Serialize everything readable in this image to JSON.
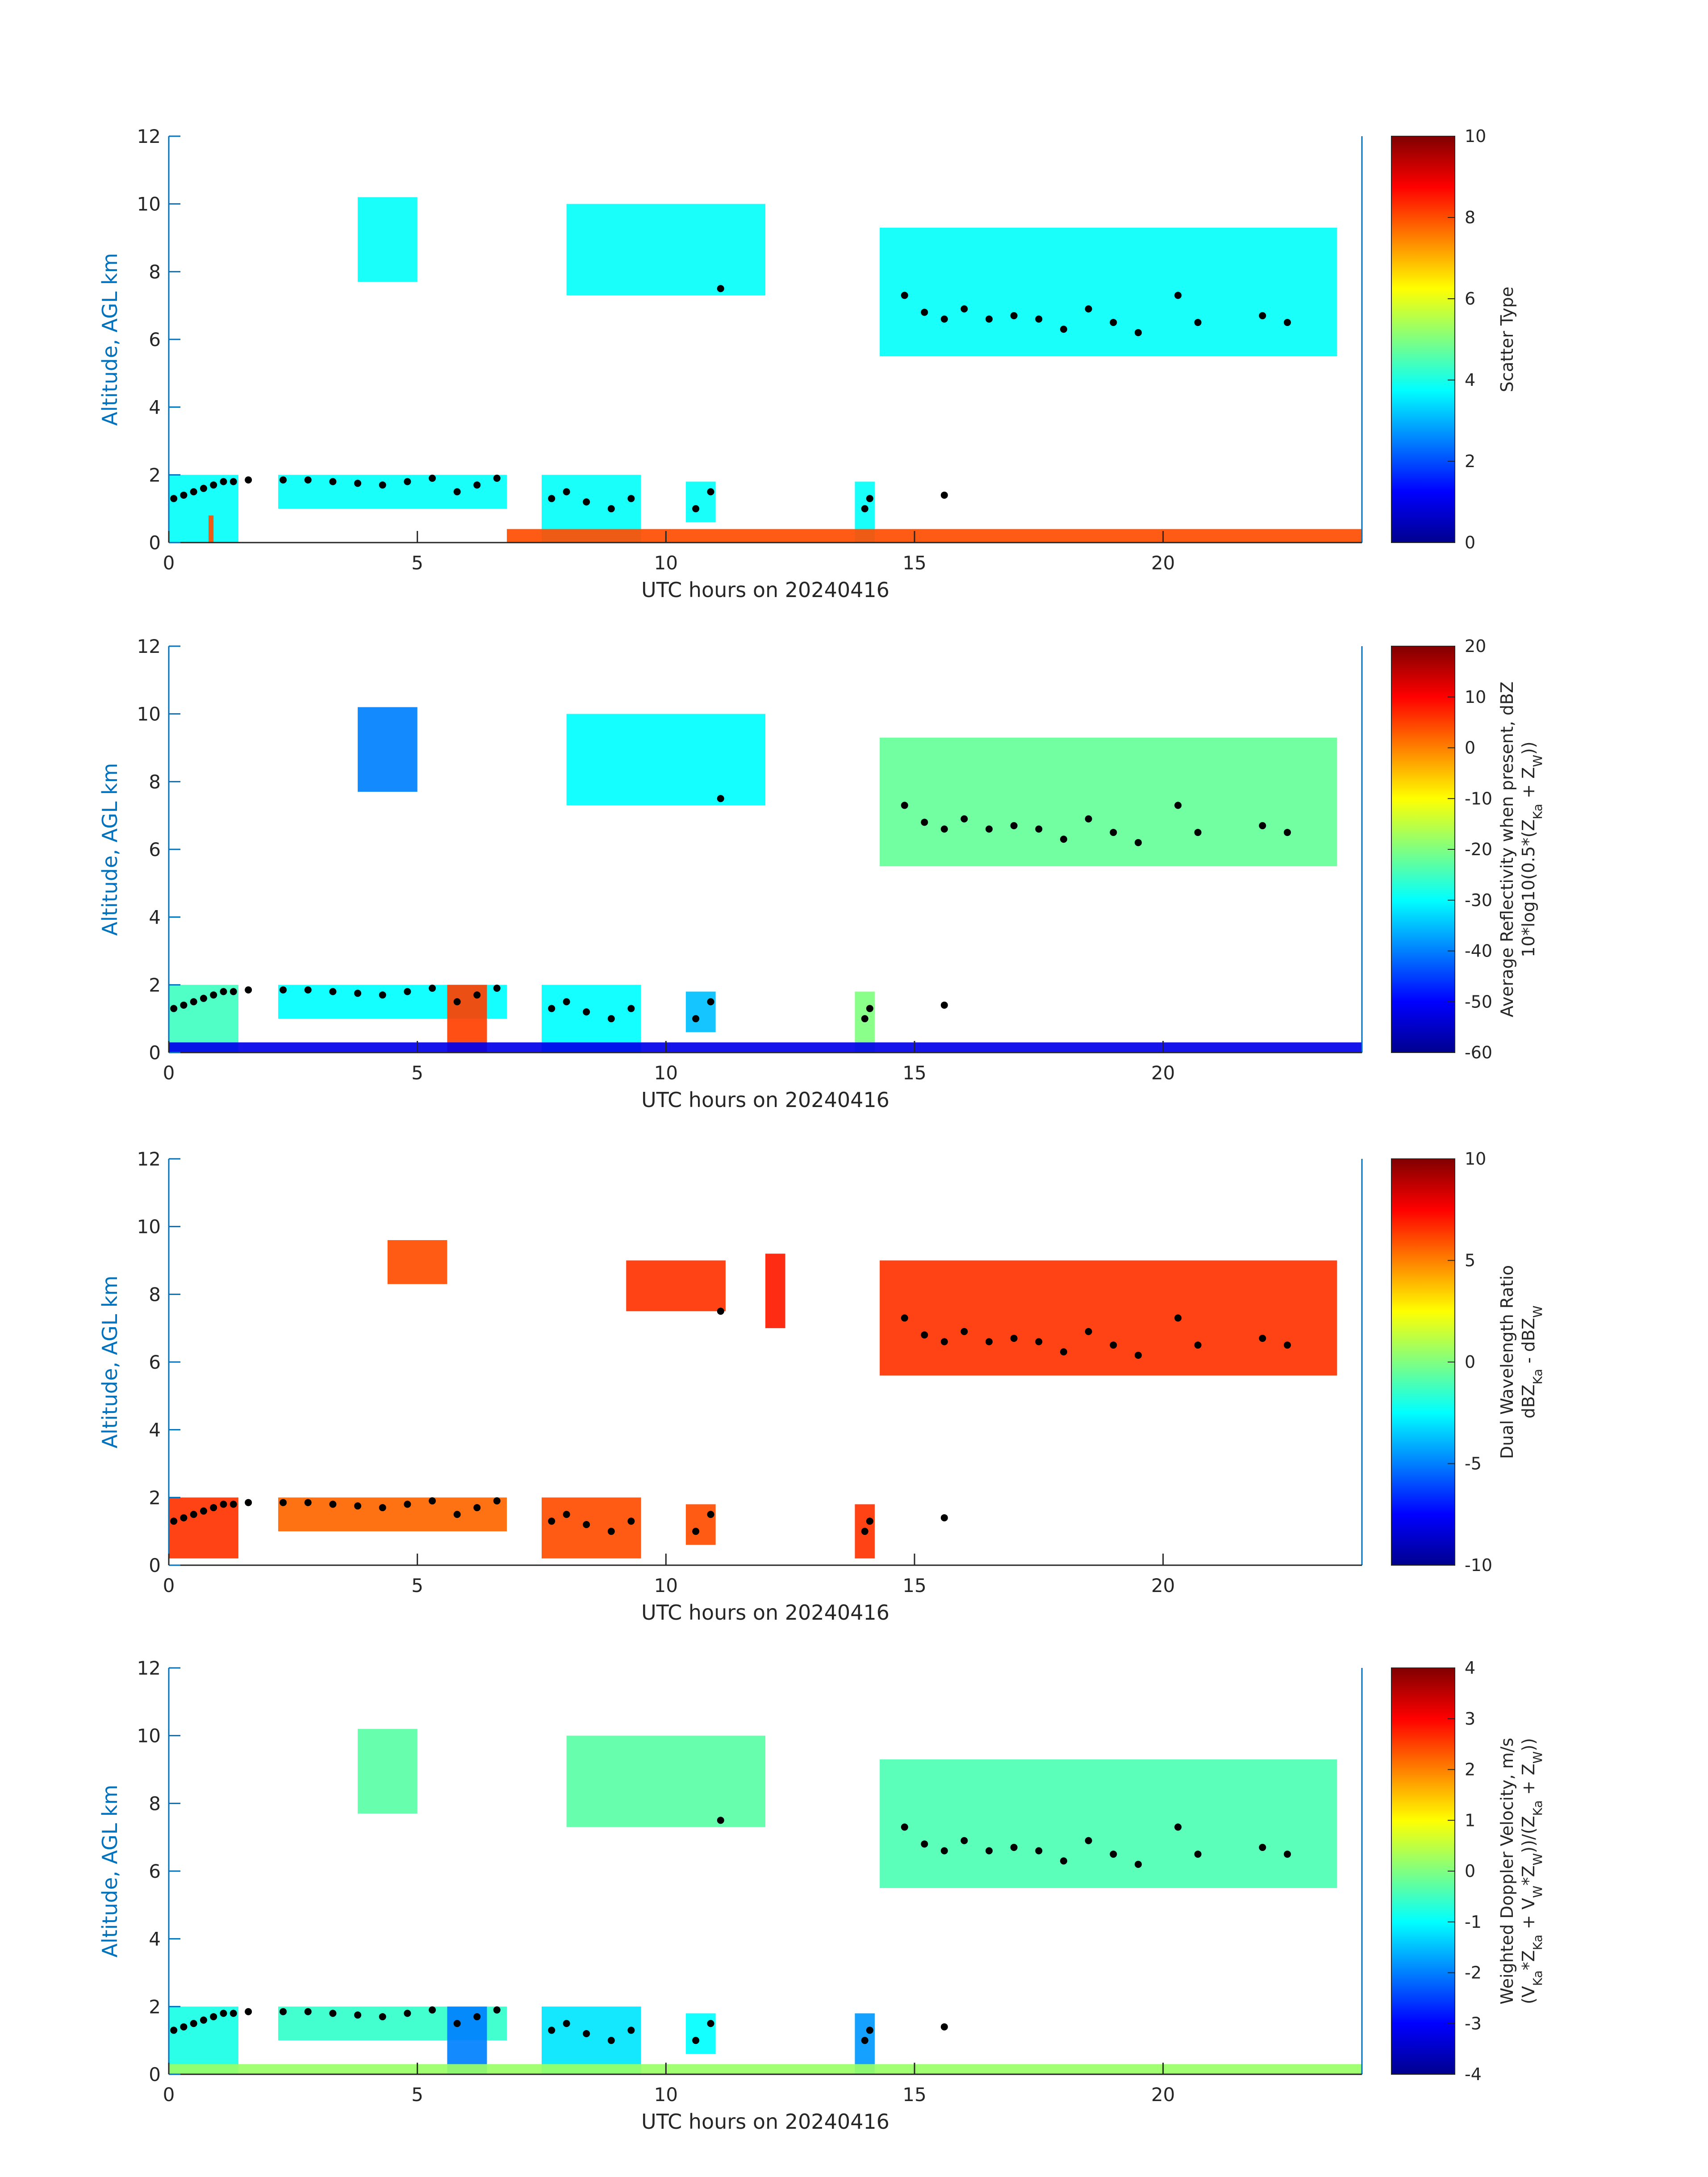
{
  "palette": {
    "axis": "#0072bd",
    "black": "#000000",
    "jet": [
      "#00008f",
      "#0000ff",
      "#0080ff",
      "#00ffff",
      "#80ff80",
      "#ffff00",
      "#ff8000",
      "#ff0000",
      "#800000"
    ]
  },
  "chart_data": [
    {
      "type": "heatmap",
      "title": "",
      "xlabel": "UTC hours on 20240416",
      "ylabel": "Altitude, AGL km",
      "xlim": [
        0,
        24
      ],
      "ylim": [
        0,
        12
      ],
      "x_ticks": [
        0,
        5,
        10,
        15,
        20
      ],
      "y_ticks": [
        0,
        2,
        4,
        6,
        8,
        10,
        12
      ],
      "colorbar": {
        "label": "Scatter Type",
        "label2": "",
        "clim": [
          0,
          10
        ],
        "ticks": [
          0,
          2,
          4,
          6,
          8,
          10
        ]
      },
      "regions": [
        {
          "x": [
            0.0,
            1.4
          ],
          "y": [
            0.0,
            2.0
          ],
          "value": 3.8
        },
        {
          "x": [
            2.2,
            6.8
          ],
          "y": [
            1.0,
            2.0
          ],
          "value": 3.8
        },
        {
          "x": [
            7.5,
            9.5
          ],
          "y": [
            0.0,
            2.0
          ],
          "value": 3.8
        },
        {
          "x": [
            10.4,
            11.0
          ],
          "y": [
            0.6,
            1.8
          ],
          "value": 3.8
        },
        {
          "x": [
            13.8,
            14.2
          ],
          "y": [
            0.0,
            1.8
          ],
          "value": 3.8
        },
        {
          "x": [
            8.0,
            12.0
          ],
          "y": [
            7.3,
            10.0
          ],
          "value": 3.8
        },
        {
          "x": [
            3.8,
            5.0
          ],
          "y": [
            7.7,
            10.2
          ],
          "value": 3.8
        },
        {
          "x": [
            14.3,
            23.5
          ],
          "y": [
            5.5,
            9.3
          ],
          "value": 3.8
        },
        {
          "x": [
            0.8,
            0.9
          ],
          "y": [
            0.0,
            0.8
          ],
          "value": 8.0
        },
        {
          "x": [
            6.8,
            24.0
          ],
          "y": [
            0.0,
            0.4
          ],
          "value": 8.0
        }
      ]
    },
    {
      "type": "heatmap",
      "title": "",
      "xlabel": "UTC hours on 20240416",
      "ylabel": "Altitude, AGL km",
      "xlim": [
        0,
        24
      ],
      "ylim": [
        0,
        12
      ],
      "x_ticks": [
        0,
        5,
        10,
        15,
        20
      ],
      "y_ticks": [
        0,
        2,
        4,
        6,
        8,
        10,
        12
      ],
      "colorbar": {
        "label": "Average Reflectivity when present, dBZ",
        "label2": "10*log10(0.5*(Z_Ka + Z_W))",
        "clim": [
          -60,
          20
        ],
        "ticks": [
          -60,
          -50,
          -40,
          -30,
          -20,
          -10,
          0,
          10,
          20
        ]
      },
      "regions": [
        {
          "x": [
            0.0,
            1.4
          ],
          "y": [
            0.0,
            2.0
          ],
          "value": -25
        },
        {
          "x": [
            2.2,
            6.8
          ],
          "y": [
            1.0,
            2.0
          ],
          "value": -30
        },
        {
          "x": [
            5.6,
            6.4
          ],
          "y": [
            0.0,
            2.0
          ],
          "value": 5
        },
        {
          "x": [
            7.5,
            9.5
          ],
          "y": [
            0.0,
            2.0
          ],
          "value": -30
        },
        {
          "x": [
            10.4,
            11.0
          ],
          "y": [
            0.6,
            1.8
          ],
          "value": -35
        },
        {
          "x": [
            13.8,
            14.2
          ],
          "y": [
            0.0,
            1.8
          ],
          "value": -20
        },
        {
          "x": [
            8.0,
            12.0
          ],
          "y": [
            7.3,
            10.0
          ],
          "value": -30
        },
        {
          "x": [
            3.8,
            5.0
          ],
          "y": [
            7.7,
            10.2
          ],
          "value": -40
        },
        {
          "x": [
            14.3,
            23.5
          ],
          "y": [
            5.5,
            9.3
          ],
          "value": -22
        },
        {
          "x": [
            0.0,
            24.0
          ],
          "y": [
            0.0,
            0.3
          ],
          "value": -52
        }
      ]
    },
    {
      "type": "heatmap",
      "title": "",
      "xlabel": "UTC hours on 20240416",
      "ylabel": "Altitude, AGL km",
      "xlim": [
        0,
        24
      ],
      "ylim": [
        0,
        12
      ],
      "x_ticks": [
        0,
        5,
        10,
        15,
        20
      ],
      "y_ticks": [
        0,
        2,
        4,
        6,
        8,
        10,
        12
      ],
      "colorbar": {
        "label": "Dual Wavelength Ratio",
        "label2": "dBZ_Ka - dBZ_W",
        "clim": [
          -10,
          10
        ],
        "ticks": [
          -10,
          -5,
          0,
          5,
          10
        ]
      },
      "regions": [
        {
          "x": [
            0.0,
            1.4
          ],
          "y": [
            0.2,
            2.0
          ],
          "value": 6.5
        },
        {
          "x": [
            2.2,
            6.8
          ],
          "y": [
            1.0,
            2.0
          ],
          "value": 5.5
        },
        {
          "x": [
            7.5,
            9.5
          ],
          "y": [
            0.2,
            2.0
          ],
          "value": 6.0
        },
        {
          "x": [
            10.4,
            11.0
          ],
          "y": [
            0.6,
            1.8
          ],
          "value": 6.0
        },
        {
          "x": [
            13.8,
            14.2
          ],
          "y": [
            0.2,
            1.8
          ],
          "value": 6.5
        },
        {
          "x": [
            9.2,
            11.2
          ],
          "y": [
            7.5,
            9.0
          ],
          "value": 6.5
        },
        {
          "x": [
            12.0,
            12.4
          ],
          "y": [
            7.0,
            9.2
          ],
          "value": 7.0
        },
        {
          "x": [
            4.4,
            5.6
          ],
          "y": [
            8.3,
            9.6
          ],
          "value": 6.0
        },
        {
          "x": [
            14.3,
            23.5
          ],
          "y": [
            5.6,
            9.0
          ],
          "value": 6.5
        }
      ]
    },
    {
      "type": "heatmap",
      "title": "",
      "xlabel": "UTC hours on 20240416",
      "ylabel": "Altitude, AGL km",
      "xlim": [
        0,
        24
      ],
      "ylim": [
        0,
        12
      ],
      "x_ticks": [
        0,
        5,
        10,
        15,
        20
      ],
      "y_ticks": [
        0,
        2,
        4,
        6,
        8,
        10,
        12
      ],
      "colorbar": {
        "label": "Weighted Doppler Velocity, m/s",
        "label2": "(V_Ka*Z_Ka + V_W*Z_W))/(Z_Ka + Z_W))",
        "clim": [
          -4,
          4
        ],
        "ticks": [
          -4,
          -3,
          -2,
          -1,
          0,
          1,
          2,
          3,
          4
        ]
      },
      "regions": [
        {
          "x": [
            0.0,
            1.4
          ],
          "y": [
            0.0,
            2.0
          ],
          "value": -0.8
        },
        {
          "x": [
            2.2,
            6.8
          ],
          "y": [
            1.0,
            2.0
          ],
          "value": -0.6
        },
        {
          "x": [
            5.6,
            6.4
          ],
          "y": [
            0.0,
            2.0
          ],
          "value": -2.0
        },
        {
          "x": [
            7.5,
            9.5
          ],
          "y": [
            0.0,
            2.0
          ],
          "value": -1.2
        },
        {
          "x": [
            10.4,
            11.0
          ],
          "y": [
            0.6,
            1.8
          ],
          "value": -1.0
        },
        {
          "x": [
            13.8,
            14.2
          ],
          "y": [
            0.0,
            1.8
          ],
          "value": -1.8
        },
        {
          "x": [
            8.0,
            12.0
          ],
          "y": [
            7.3,
            10.0
          ],
          "value": -0.3
        },
        {
          "x": [
            3.8,
            5.0
          ],
          "y": [
            7.7,
            10.2
          ],
          "value": -0.3
        },
        {
          "x": [
            14.3,
            23.5
          ],
          "y": [
            5.5,
            9.3
          ],
          "value": -0.4
        },
        {
          "x": [
            0.0,
            24.0
          ],
          "y": [
            0.0,
            0.3
          ],
          "value": 0.2
        }
      ]
    }
  ],
  "overlay": {
    "name": "black dots",
    "points": [
      [
        0.1,
        1.3
      ],
      [
        0.3,
        1.4
      ],
      [
        0.5,
        1.5
      ],
      [
        0.7,
        1.6
      ],
      [
        0.9,
        1.7
      ],
      [
        1.1,
        1.8
      ],
      [
        1.3,
        1.8
      ],
      [
        1.6,
        1.85
      ],
      [
        2.3,
        1.85
      ],
      [
        2.8,
        1.85
      ],
      [
        3.3,
        1.8
      ],
      [
        3.8,
        1.75
      ],
      [
        4.3,
        1.7
      ],
      [
        4.8,
        1.8
      ],
      [
        5.3,
        1.9
      ],
      [
        5.8,
        1.5
      ],
      [
        6.2,
        1.7
      ],
      [
        6.6,
        1.9
      ],
      [
        7.7,
        1.3
      ],
      [
        8.0,
        1.5
      ],
      [
        8.4,
        1.2
      ],
      [
        8.9,
        1.0
      ],
      [
        9.3,
        1.3
      ],
      [
        10.6,
        1.0
      ],
      [
        10.9,
        1.5
      ],
      [
        11.1,
        7.5
      ],
      [
        14.0,
        1.0
      ],
      [
        14.1,
        1.3
      ],
      [
        15.6,
        1.4
      ],
      [
        14.8,
        7.3
      ],
      [
        15.2,
        6.8
      ],
      [
        15.6,
        6.6
      ],
      [
        16.0,
        6.9
      ],
      [
        16.5,
        6.6
      ],
      [
        17.0,
        6.7
      ],
      [
        17.5,
        6.6
      ],
      [
        18.0,
        6.3
      ],
      [
        18.5,
        6.9
      ],
      [
        19.0,
        6.5
      ],
      [
        19.5,
        6.2
      ],
      [
        20.3,
        7.3
      ],
      [
        20.7,
        6.5
      ],
      [
        22.0,
        6.7
      ],
      [
        22.5,
        6.5
      ]
    ]
  }
}
